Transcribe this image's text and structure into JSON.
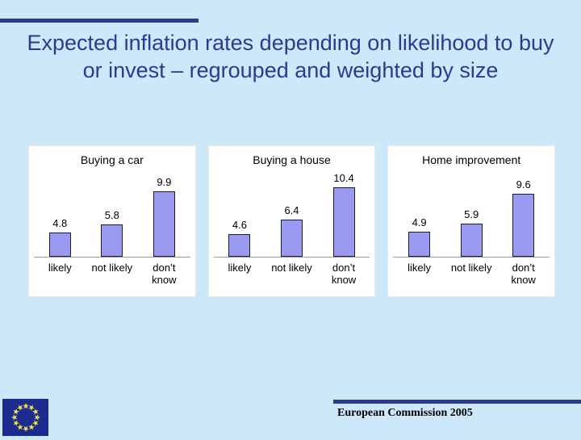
{
  "slide": {
    "title": "Expected inflation rates depending on likelihood to buy or invest – regrouped and weighted by size",
    "footer": "European Commission 2005"
  },
  "chart_data": [
    {
      "type": "bar",
      "title": "Buying a car",
      "categories": [
        "likely",
        "not likely",
        "don’t know"
      ],
      "values": [
        4.8,
        5.8,
        9.9
      ],
      "ylim": [
        2,
        11
      ],
      "grid": false,
      "data_labels": [
        "4.8",
        "5.8",
        "9.9"
      ]
    },
    {
      "type": "bar",
      "title": "Buying a house",
      "categories": [
        "likely",
        "not likely",
        "don’t know"
      ],
      "values": [
        4.6,
        6.4,
        10.4
      ],
      "ylim": [
        2,
        11
      ],
      "grid": false,
      "data_labels": [
        "4.6",
        "6.4",
        "10.4"
      ]
    },
    {
      "type": "bar",
      "title": "Home improvement",
      "categories": [
        "likely",
        "not likely",
        "don’t know"
      ],
      "values": [
        4.9,
        5.9,
        9.6
      ],
      "ylim": [
        2,
        11
      ],
      "grid": false,
      "data_labels": [
        "4.9",
        "5.9",
        "9.6"
      ]
    }
  ],
  "icons": {
    "eu_flag": "eu-flag"
  },
  "colors": {
    "background": "#cde8f9",
    "accent_navy": "#2e3a8c",
    "title_text": "#2d3a91",
    "bar_fill": "#9a9af0",
    "bar_border": "#1c1c3a",
    "baseline": "#9a9a9a",
    "panel_bg": "#ffffff",
    "flag_blue": "#1c2b8e",
    "star_yellow": "#f2e24a"
  }
}
